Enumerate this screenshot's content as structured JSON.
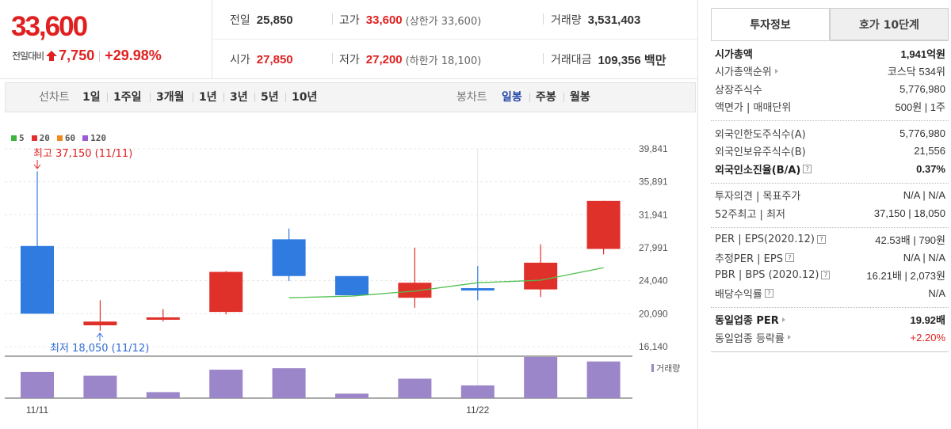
{
  "price": {
    "current": "33,600",
    "change_label": "전일대비",
    "change_value": "7,750",
    "change_pct": "+29.98%"
  },
  "quote": {
    "prev_close_label": "전일",
    "prev_close": "25,850",
    "high_label": "고가",
    "high": "33,600",
    "high_sub": "(상한가 33,600)",
    "volume_label": "거래량",
    "volume": "3,531,403",
    "open_label": "시가",
    "open": "27,850",
    "low_label": "저가",
    "low": "27,200",
    "low_sub": "(하한가 18,100)",
    "amount_label": "거래대금",
    "amount": "109,356 백만"
  },
  "period_bar": {
    "line_chart_label": "선차트",
    "line_periods": [
      "1일",
      "1주일",
      "3개월",
      "1년",
      "3년",
      "5년",
      "10년"
    ],
    "candle_chart_label": "봉차트",
    "candle_periods": [
      "일봉",
      "주봉",
      "월봉"
    ],
    "active_candle": "일봉"
  },
  "legend": [
    {
      "name": "5",
      "color": "#3db43d"
    },
    {
      "name": "20",
      "color": "#e03030"
    },
    {
      "name": "60",
      "color": "#f08a1e"
    },
    {
      "name": "120",
      "color": "#9b5bd6"
    }
  ],
  "chart_data": {
    "type": "candlestick",
    "y_ticks": [
      "39,841",
      "35,891",
      "31,941",
      "27,991",
      "24,040",
      "20,090",
      "16,140"
    ],
    "ylim": [
      16140,
      39841
    ],
    "x_labels": [
      "11/11",
      "11/22"
    ],
    "candles": [
      {
        "open": 28200,
        "high": 37150,
        "low": 20090,
        "close": 20090,
        "dir": "down"
      },
      {
        "open": 18700,
        "high": 21700,
        "low": 18050,
        "close": 19150,
        "dir": "up"
      },
      {
        "open": 19450,
        "high": 20650,
        "low": 19150,
        "close": 19650,
        "dir": "up"
      },
      {
        "open": 20300,
        "high": 25200,
        "low": 20000,
        "close": 25100,
        "dir": "up"
      },
      {
        "open": 29000,
        "high": 30300,
        "low": 24000,
        "close": 24600,
        "dir": "down"
      },
      {
        "open": 24600,
        "high": 24600,
        "low": 22300,
        "close": 22300,
        "dir": "down"
      },
      {
        "open": 22000,
        "high": 28000,
        "low": 20800,
        "close": 23800,
        "dir": "up"
      },
      {
        "open": 23150,
        "high": 25800,
        "low": 21700,
        "close": 22900,
        "dir": "down"
      },
      {
        "open": 23000,
        "high": 28400,
        "low": 22100,
        "close": 26200,
        "dir": "up"
      },
      {
        "open": 27850,
        "high": 33600,
        "low": 27200,
        "close": 33600,
        "dir": "up"
      }
    ],
    "ma5": [
      null,
      null,
      null,
      null,
      22000,
      22200,
      22800,
      23800,
      24100,
      25600
    ],
    "volumes": [
      35,
      30,
      8,
      38,
      40,
      6,
      26,
      17,
      55,
      49
    ],
    "max_label": "최고 37,150 (11/11)",
    "min_label": "최저 18,050 (11/12)",
    "volume_label": "거래량"
  },
  "invest_info": {
    "tabs": [
      "투자정보",
      "호가 10단계"
    ],
    "sections": [
      [
        {
          "key": "시가총액",
          "value": "1,941억원",
          "bold": true
        },
        {
          "key": "시가총액순위",
          "value": "코스닥 534위",
          "arrow": true
        },
        {
          "key": "상장주식수",
          "value": "5,776,980"
        },
        {
          "key": "액면가 | 매매단위",
          "value": "500원 | 1주"
        }
      ],
      [
        {
          "key": "외국인한도주식수(A)",
          "value": "5,776,980"
        },
        {
          "key": "외국인보유주식수(B)",
          "value": "21,556"
        },
        {
          "key": "외국인소진율(B/A)",
          "value": "0.37%",
          "bold": true,
          "help": true
        }
      ],
      [
        {
          "key": "투자의견 | 목표주가",
          "value": "N/A | N/A"
        },
        {
          "key": "52주최고 | 최저",
          "value": "37,150 | 18,050"
        }
      ],
      [
        {
          "key": "PER | EPS(2020.12)",
          "value": "42.53배 | 790원",
          "help": true
        },
        {
          "key": "추정PER | EPS",
          "value": "N/A | N/A",
          "help": true
        },
        {
          "key": "PBR | BPS (2020.12)",
          "value": "16.21배 | 2,073원",
          "help": true
        },
        {
          "key": "배당수익률",
          "value": "N/A",
          "help": true
        }
      ],
      [
        {
          "key": "동일업종 PER",
          "value": "19.92배",
          "bold": true,
          "arrow": true
        },
        {
          "key": "동일업종 등락률",
          "value": "+2.20%",
          "arrow": true,
          "red": true
        }
      ]
    ]
  }
}
